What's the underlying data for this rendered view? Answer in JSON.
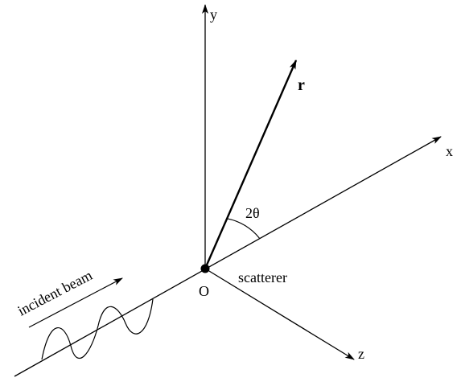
{
  "diagram": {
    "axes": {
      "y_label": "y",
      "x_label": "x",
      "z_label": "z"
    },
    "origin_label": "O",
    "vector_label": "r",
    "angle_label": "2θ",
    "scatterer_label": "scatterer",
    "beam_label": "incident beam"
  }
}
